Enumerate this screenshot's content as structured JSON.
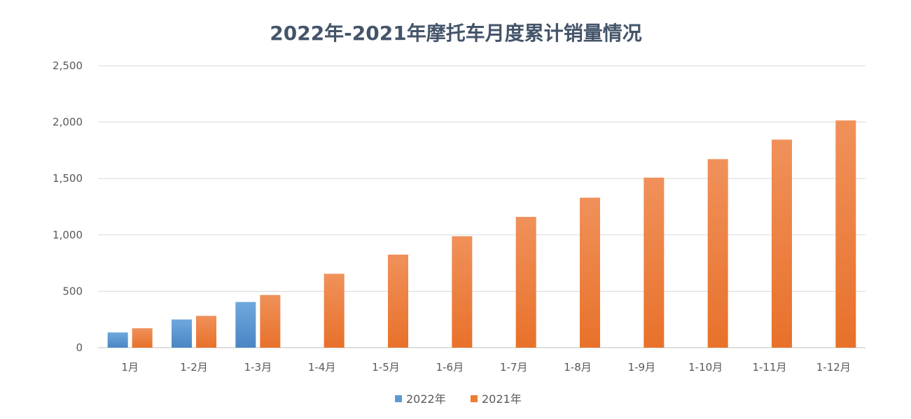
{
  "chart_data": {
    "type": "bar",
    "title": "2022年-2021年摩托车月度累计销量情况",
    "xlabel": "",
    "ylabel": "",
    "categories": [
      "1月",
      "1-2月",
      "1-3月",
      "1-4月",
      "1-5月",
      "1-6月",
      "1-7月",
      "1-8月",
      "1-9月",
      "1-10月",
      "1-11月",
      "1-12月"
    ],
    "series": [
      {
        "name": "2022年",
        "color": "#5b9bd5",
        "values": [
          135,
          250,
          405,
          null,
          null,
          null,
          null,
          null,
          null,
          null,
          null,
          null
        ]
      },
      {
        "name": "2021年",
        "color": "#ed7d31",
        "values": [
          172,
          282,
          467,
          655,
          825,
          988,
          1160,
          1330,
          1508,
          1672,
          1845,
          2015
        ]
      }
    ],
    "ylim": [
      0,
      2500
    ],
    "yticks": [
      0,
      500,
      1000,
      1500,
      2000,
      2500
    ],
    "ytick_labels": [
      "0",
      "500",
      "1,000",
      "1,500",
      "2,000",
      "2,500"
    ],
    "grid": true,
    "legend_position": "bottom"
  }
}
